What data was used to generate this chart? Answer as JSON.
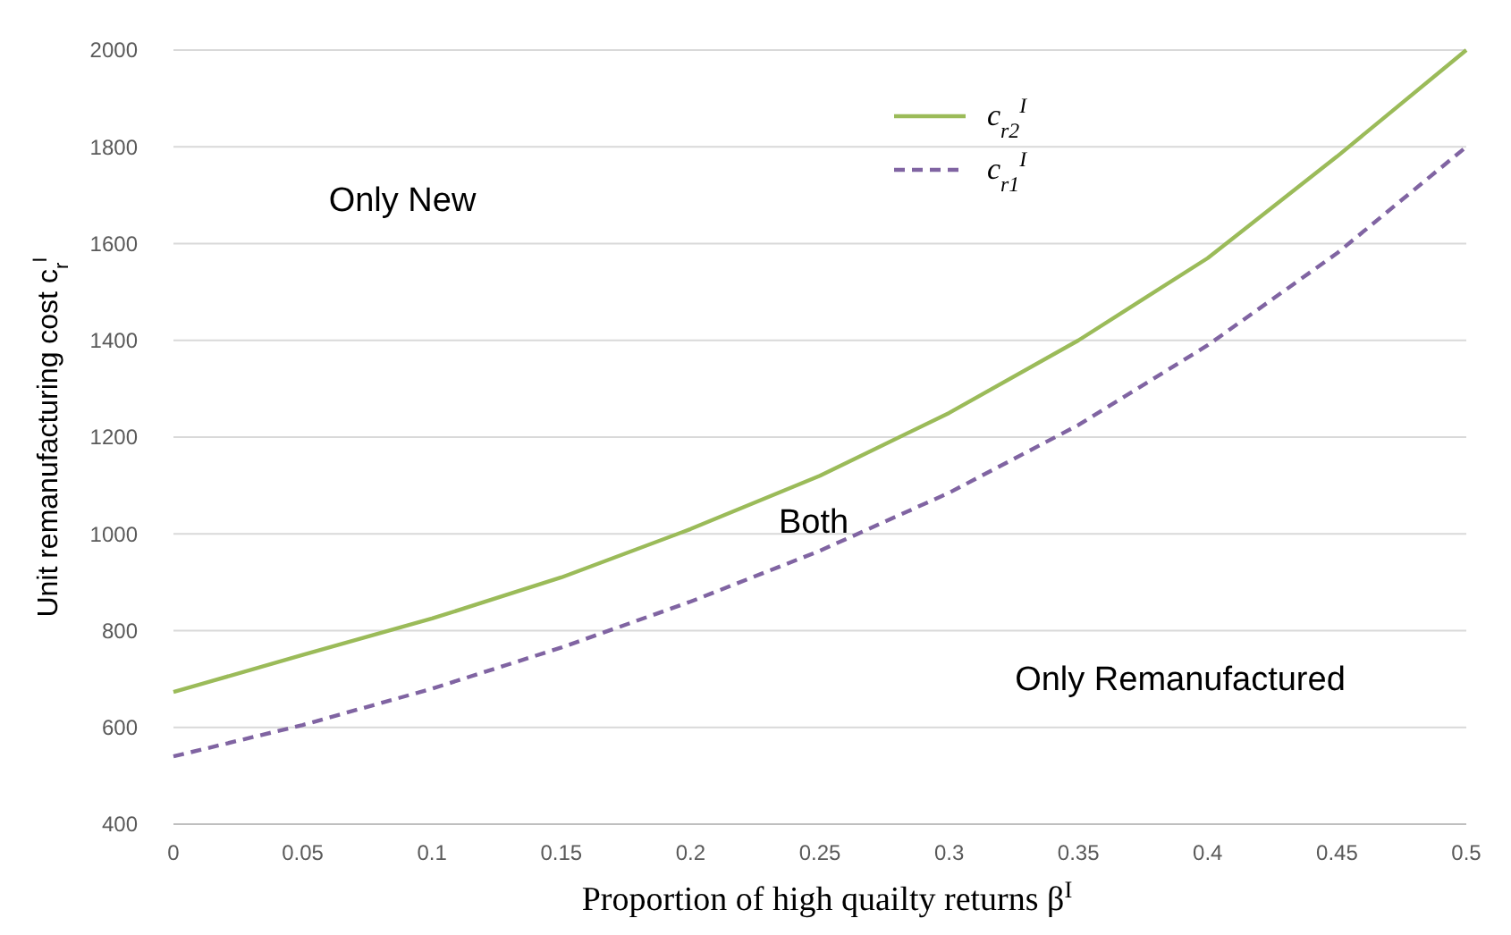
{
  "chart_data": {
    "type": "line",
    "xlabel": "Proportion of high quailty returns β$^{I}$",
    "ylabel": "Unit remanufacturing cost c$_{r}$$^{I}$",
    "x": [
      0,
      0.05,
      0.1,
      0.15,
      0.2,
      0.25,
      0.3,
      0.35,
      0.4,
      0.45,
      0.5
    ],
    "series": [
      {
        "name": "c$_{r2}$$^{I}$",
        "color": "#9bbb59",
        "line_style": "solid",
        "values": [
          673,
          750,
          825,
          910,
          1010,
          1120,
          1250,
          1400,
          1570,
          1780,
          2000
        ]
      },
      {
        "name": "c$_{r1}$$^{I}$",
        "color": "#8064a2",
        "line_style": "dashed",
        "values": [
          540,
          605,
          680,
          765,
          860,
          965,
          1085,
          1225,
          1390,
          1580,
          1800
        ]
      }
    ],
    "xlim": [
      0,
      0.5
    ],
    "xticks": [
      0,
      0.05,
      0.1,
      0.15,
      0.2,
      0.25,
      0.3,
      0.35,
      0.4,
      0.45,
      0.5
    ],
    "ylim": [
      400,
      2000
    ],
    "yticks": [
      400,
      600,
      800,
      1000,
      1200,
      1400,
      1600,
      1800,
      2000
    ],
    "grid": "y",
    "legend": "top",
    "marker": "none",
    "annotations": [
      "Only New",
      "Both",
      "Only Remanufactured"
    ]
  }
}
